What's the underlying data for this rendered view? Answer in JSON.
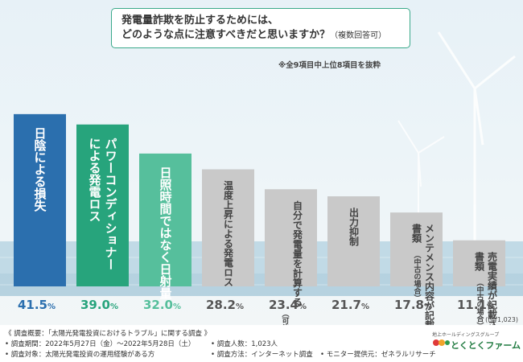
{
  "question": {
    "line1": "発電量詐欺を防止するためには、",
    "line2": "どのような点に注意すべきだと思いますか？",
    "note": "（複数回答可）"
  },
  "subnote": "※全9項目中上位8項目を抜粋",
  "sample_size": "(n=1,023)",
  "colors": {
    "bar1": "#2b6fae",
    "bar2": "#27a47c",
    "bar3": "#56bf9c",
    "bar_other": "#c9c9c9",
    "value_top": "#2b6fae",
    "value_2": "#27a47c",
    "value_3": "#56bf9c",
    "value_other": "#555555"
  },
  "chart_data": {
    "type": "bar",
    "ylim": [
      0,
      50
    ],
    "values": [
      41.5,
      39.0,
      32.0,
      28.2,
      23.4,
      21.7,
      17.8,
      11.1
    ],
    "value_labels": [
      "41.5",
      "39.0",
      "32.0",
      "28.2",
      "23.4",
      "21.7",
      "17.8",
      "11.1"
    ],
    "unit": "%",
    "categories": [
      {
        "main": [
          "日陰による損失"
        ],
        "sub": []
      },
      {
        "main": [
          "パワーコンディショナー",
          "による発電ロス"
        ],
        "sub": []
      },
      {
        "main": [
          "日照時間ではなく日射量"
        ],
        "sub": []
      },
      {
        "main": [
          "温度上昇による発電ロス"
        ],
        "sub": []
      },
      {
        "main": [
          "自分で発電量を計算する"
        ],
        "sub": [
          "（可能な場合）"
        ]
      },
      {
        "main": [
          "出力抑制"
        ],
        "sub": []
      },
      {
        "main": [
          "メンテメンス内容が記載された",
          "書類"
        ],
        "sub": [
          "（中古の場合）"
        ]
      },
      {
        "main": [
          "売電実績が記載された",
          "書類"
        ],
        "sub": [
          "（中古の場合）"
        ]
      }
    ]
  },
  "footer": {
    "lines": [
      "《 調査概要：「太陽光発電投資におけるトラブル」に関する調査 》",
      "• 調査期間：2022年5月27日（金）〜2022年5月28日（土）",
      "• 調査対象：太陽光発電投資の運用経験がある方",
      "• 調査人数：1,023人",
      "• 調査方法：インターネット調査",
      "• モニター提供元：ゼネラルリサーチ"
    ],
    "brand_small": "地上ホールディングスグループ",
    "brand_name": "とくとくファーム"
  }
}
